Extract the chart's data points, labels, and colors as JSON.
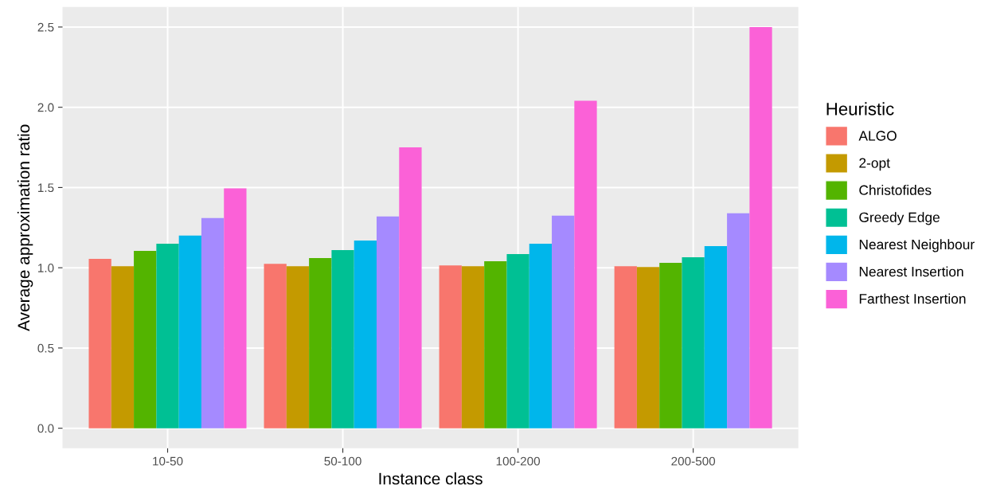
{
  "chart_data": {
    "type": "bar",
    "xlabel": "Instance class",
    "ylabel": "Average approximation ratio",
    "legend_title": "Heuristic",
    "categories": [
      "10-50",
      "50-100",
      "100-200",
      "200-500"
    ],
    "series": [
      {
        "name": "ALGO",
        "color": "#f8766d",
        "values": [
          1.055,
          1.025,
          1.015,
          1.01
        ]
      },
      {
        "name": "2-opt",
        "color": "#c49a00",
        "values": [
          1.01,
          1.01,
          1.01,
          1.005
        ]
      },
      {
        "name": "Christofides",
        "color": "#53b400",
        "values": [
          1.105,
          1.06,
          1.04,
          1.03
        ]
      },
      {
        "name": "Greedy Edge",
        "color": "#00c094",
        "values": [
          1.15,
          1.11,
          1.085,
          1.065
        ]
      },
      {
        "name": "Nearest Neighbour",
        "color": "#00b6eb",
        "values": [
          1.2,
          1.17,
          1.15,
          1.135
        ]
      },
      {
        "name": "Nearest Insertion",
        "color": "#a58aff",
        "values": [
          1.31,
          1.32,
          1.325,
          1.34
        ]
      },
      {
        "name": "Farthest Insertion",
        "color": "#fb61d7",
        "values": [
          1.495,
          1.75,
          2.04,
          2.5
        ]
      }
    ],
    "ylim": [
      -0.125,
      2.625
    ],
    "yticks": [
      {
        "value": 0,
        "label": "0.0"
      },
      {
        "value": 0.5,
        "label": "0.5"
      },
      {
        "value": 1,
        "label": "1.0"
      },
      {
        "value": 1.5,
        "label": "1.5"
      },
      {
        "value": 2,
        "label": "2.0"
      },
      {
        "value": 2.5,
        "label": "2.5"
      }
    ],
    "grid": true,
    "legend": "right"
  }
}
